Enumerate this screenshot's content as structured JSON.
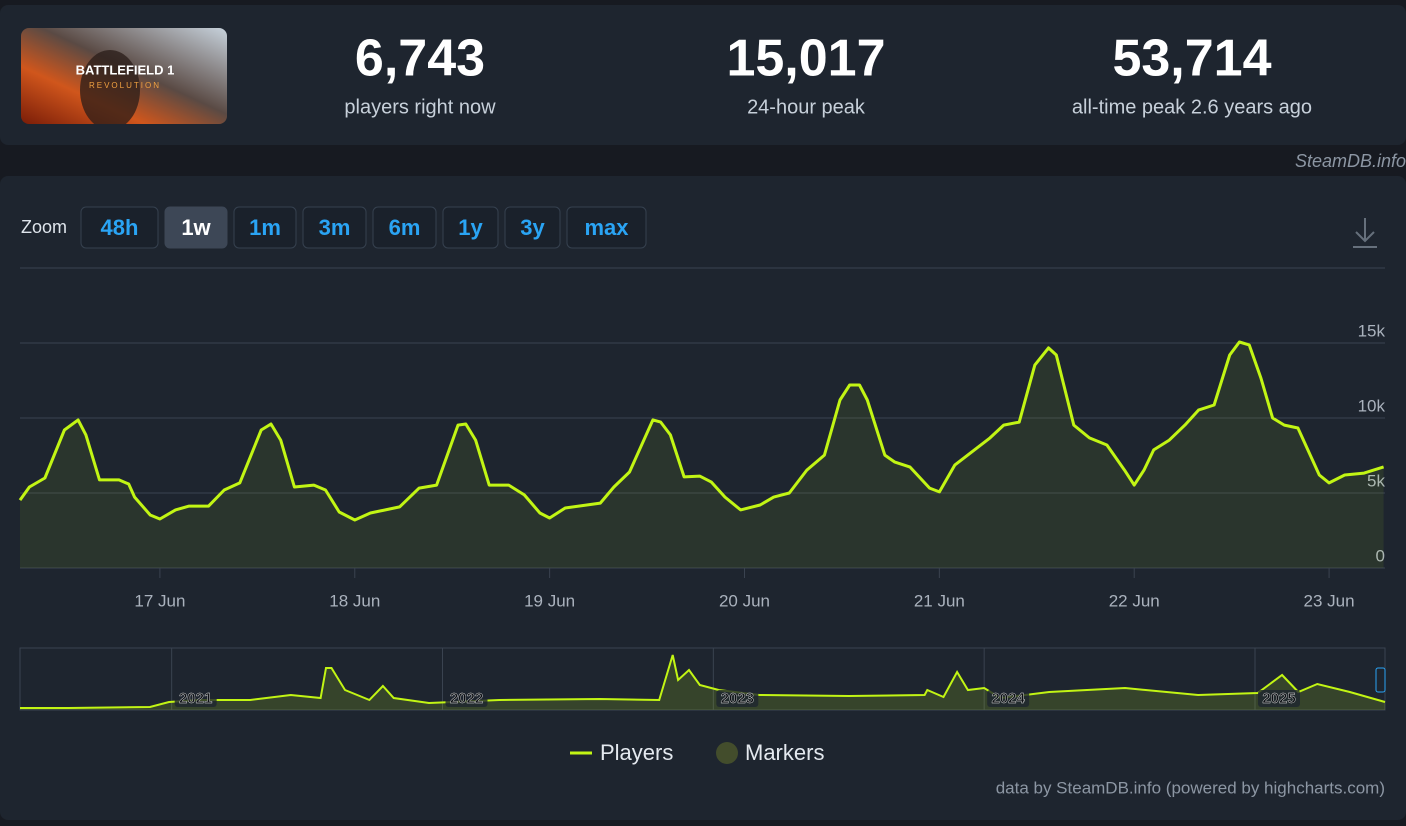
{
  "game": {
    "title": "BATTLEFIELD 1",
    "subtitle": "REVOLUTION"
  },
  "stats": [
    {
      "value": "6,743",
      "label": "players right now"
    },
    {
      "value": "15,017",
      "label": "24-hour peak"
    },
    {
      "value": "53,714",
      "label": "all-time peak 2.6 years ago"
    }
  ],
  "watermark": "SteamDB.info",
  "zoom": {
    "label": "Zoom",
    "options": [
      "48h",
      "1w",
      "1m",
      "3m",
      "6m",
      "1y",
      "3y",
      "max"
    ],
    "selected": "1w"
  },
  "chart_data": {
    "type": "line",
    "series": [
      {
        "name": "Players",
        "color": "#c2f514",
        "x": [
          16.282,
          16.33,
          16.41,
          16.51,
          16.58,
          16.62,
          16.69,
          16.79,
          16.84,
          16.87,
          16.95,
          17.0,
          17.08,
          17.15,
          17.25,
          17.33,
          17.41,
          17.52,
          17.57,
          17.62,
          17.69,
          17.79,
          17.85,
          17.92,
          18.0,
          18.08,
          18.23,
          18.33,
          18.42,
          18.53,
          18.57,
          18.62,
          18.69,
          18.79,
          18.87,
          18.95,
          19.0,
          19.08,
          19.26,
          19.33,
          19.41,
          19.53,
          19.57,
          19.62,
          19.69,
          19.77,
          19.83,
          19.9,
          19.98,
          20.08,
          20.15,
          20.23,
          20.32,
          20.41,
          20.49,
          20.54,
          20.59,
          20.63,
          20.72,
          20.77,
          20.85,
          20.95,
          21.0,
          21.08,
          21.18,
          21.26,
          21.33,
          21.41,
          21.49,
          21.56,
          21.6,
          21.69,
          21.77,
          21.86,
          21.95,
          22.0,
          22.05,
          22.1,
          22.18,
          22.26,
          22.33,
          22.41,
          22.49,
          22.54,
          22.59,
          22.65,
          22.71,
          22.77,
          22.84,
          22.95,
          23.0,
          23.08,
          23.18,
          23.28
        ],
        "values": [
          4530,
          5400,
          6000,
          9200,
          9870,
          8870,
          5870,
          5870,
          5600,
          4730,
          3530,
          3270,
          3870,
          4130,
          4130,
          5200,
          5670,
          9200,
          9600,
          8530,
          5400,
          5530,
          5200,
          3730,
          3200,
          3670,
          4070,
          5330,
          5530,
          9530,
          9600,
          8530,
          5530,
          5530,
          4870,
          3670,
          3330,
          4000,
          4330,
          5400,
          6400,
          9870,
          9730,
          8870,
          6070,
          6130,
          5730,
          4730,
          3870,
          4200,
          4730,
          5000,
          6530,
          7530,
          11200,
          12200,
          12200,
          11200,
          7530,
          7070,
          6730,
          5330,
          5070,
          6870,
          7870,
          8670,
          9530,
          9730,
          13530,
          14670,
          14200,
          9530,
          8670,
          8200,
          6530,
          5530,
          6530,
          7870,
          8530,
          9530,
          10530,
          10870,
          14200,
          15070,
          14870,
          12670,
          10000,
          9530,
          9330,
          6200,
          5670,
          6200,
          6330,
          6743
        ]
      },
      {
        "name": "Markers",
        "color": "#434d2c",
        "x": [],
        "values": []
      }
    ],
    "xlim": [
      16.282,
      23.287
    ],
    "xticks": [
      {
        "value": 17,
        "label": "17 Jun"
      },
      {
        "value": 18,
        "label": "18 Jun"
      },
      {
        "value": 19,
        "label": "19 Jun"
      },
      {
        "value": 20,
        "label": "20 Jun"
      },
      {
        "value": 21,
        "label": "21 Jun"
      },
      {
        "value": 22,
        "label": "22 Jun"
      },
      {
        "value": 23,
        "label": "23 Jun"
      }
    ],
    "ylim": [
      0,
      20000
    ],
    "yticks": [
      0,
      {
        "value": 5000,
        "label": "5k"
      },
      {
        "value": 10000,
        "label": "10k"
      },
      {
        "value": 15000,
        "label": "15k"
      }
    ],
    "grid": true,
    "area": true,
    "navigator": {
      "x": [
        2020.44,
        2020.62,
        2020.92,
        2020.99,
        2021.1,
        2021.29,
        2021.44,
        2021.55,
        2021.57,
        2021.59,
        2021.64,
        2021.73,
        2021.78,
        2021.82,
        2021.95,
        2022.21,
        2022.58,
        2022.8,
        2022.85,
        2022.87,
        2022.91,
        2022.95,
        2023.02,
        2023.17,
        2023.5,
        2023.78,
        2023.79,
        2023.85,
        2023.9,
        2023.94,
        2024.0,
        2024.06,
        2024.24,
        2024.52,
        2024.79,
        2025.01,
        2025.1,
        2025.16,
        2025.23,
        2025.35,
        2025.48
      ],
      "values": [
        1900,
        1900,
        2900,
        7700,
        9700,
        9700,
        14500,
        11600,
        40600,
        40600,
        19400,
        9700,
        23200,
        11600,
        6800,
        9700,
        10600,
        9700,
        53200,
        29000,
        38700,
        24200,
        19400,
        14500,
        13500,
        14500,
        19400,
        12600,
        36800,
        19400,
        21300,
        11600,
        17400,
        21300,
        14500,
        16500,
        33900,
        17400,
        25200,
        17400,
        7700
      ],
      "xlim": [
        2020.44,
        2025.48
      ],
      "xticks": [
        2021,
        2022,
        2023,
        2024,
        2025
      ],
      "ylim": [
        0,
        60000
      ]
    }
  },
  "credit": "data by SteamDB.info (powered by highcharts.com)"
}
